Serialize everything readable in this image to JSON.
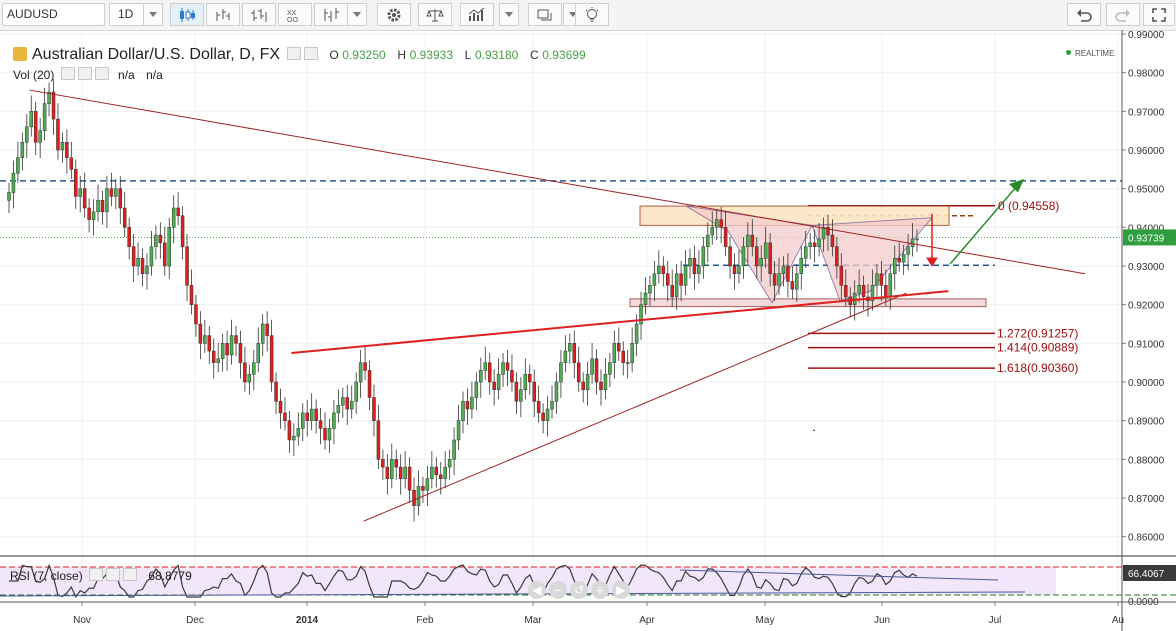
{
  "toolbar": {
    "symbol": "AUDUSD",
    "interval": "1D"
  },
  "legend": {
    "title": "Australian Dollar/U.S. Dollar, D, FX",
    "ohlc": [
      {
        "label": "O",
        "value": "0.93250"
      },
      {
        "label": "H",
        "value": "0.93933"
      },
      {
        "label": "L",
        "value": "0.93180"
      },
      {
        "label": "C",
        "value": "0.93699"
      }
    ],
    "volume_label": "Vol (20)",
    "volume_values": [
      "n/a",
      "n/a"
    ],
    "realtime": "REALTIME"
  },
  "rsi": {
    "label": "RSI (7, close)",
    "value": "68.8779",
    "axis_ticks": [
      "0.0000"
    ],
    "last_value_tag": "66.4067"
  },
  "colors": {
    "up": "#4caf50",
    "down": "#e01e1e",
    "trendline": "#a02020",
    "red_line": "#e02020",
    "resistance_dashed": "#2a5a8a",
    "fib_dashed": "#8b4513",
    "price_tag": "#2e9e3e",
    "rsi_line": "#3a3a3a",
    "rsi_fill": "#f2e6fa"
  },
  "chart_data": {
    "type": "candlestick",
    "title": "Australian Dollar/U.S. Dollar, D, FX",
    "ylim": [
      0.855,
      0.99
    ],
    "y_ticks": [
      "0.99000",
      "0.98000",
      "0.97000",
      "0.96000",
      "0.95000",
      "0.94000",
      "0.93000",
      "0.92000",
      "0.91000",
      "0.90000",
      "0.89000",
      "0.88000",
      "0.87000",
      "0.86000"
    ],
    "x_ticks": [
      "Nov",
      "Dec",
      "2014",
      "Feb",
      "Mar",
      "Apr",
      "May",
      "Jun",
      "Jul",
      "Au"
    ],
    "last_price": "0.93739",
    "fib_labels": [
      "0 (0.94558)",
      "1.272(0.91257)",
      "1.414(0.90889)",
      "1.618(0.90360)"
    ],
    "closes": [
      0.949,
      0.954,
      0.958,
      0.962,
      0.966,
      0.97,
      0.962,
      0.965,
      0.972,
      0.975,
      0.968,
      0.96,
      0.962,
      0.958,
      0.955,
      0.948,
      0.95,
      0.945,
      0.942,
      0.944,
      0.947,
      0.944,
      0.95,
      0.948,
      0.95,
      0.945,
      0.94,
      0.935,
      0.93,
      0.932,
      0.928,
      0.93,
      0.935,
      0.938,
      0.936,
      0.93,
      0.94,
      0.945,
      0.943,
      0.935,
      0.925,
      0.92,
      0.915,
      0.91,
      0.912,
      0.908,
      0.905,
      0.906,
      0.91,
      0.907,
      0.912,
      0.91,
      0.905,
      0.9,
      0.902,
      0.905,
      0.91,
      0.915,
      0.912,
      0.9,
      0.895,
      0.892,
      0.89,
      0.885,
      0.886,
      0.888,
      0.892,
      0.89,
      0.893,
      0.89,
      0.888,
      0.885,
      0.888,
      0.892,
      0.894,
      0.896,
      0.893,
      0.895,
      0.9,
      0.905,
      0.903,
      0.896,
      0.89,
      0.88,
      0.878,
      0.875,
      0.88,
      0.878,
      0.875,
      0.878,
      0.872,
      0.868,
      0.873,
      0.872,
      0.875,
      0.878,
      0.876,
      0.875,
      0.878,
      0.88,
      0.885,
      0.89,
      0.895,
      0.893,
      0.896,
      0.9,
      0.903,
      0.905,
      0.9,
      0.898,
      0.902,
      0.905,
      0.903,
      0.9,
      0.895,
      0.898,
      0.902,
      0.9,
      0.895,
      0.892,
      0.89,
      0.893,
      0.895,
      0.9,
      0.905,
      0.908,
      0.91,
      0.905,
      0.9,
      0.898,
      0.902,
      0.906,
      0.9,
      0.898,
      0.902,
      0.905,
      0.91,
      0.908,
      0.905,
      0.905,
      0.91,
      0.915,
      0.92,
      0.923,
      0.925,
      0.928,
      0.93,
      0.928,
      0.925,
      0.922,
      0.928,
      0.925,
      0.93,
      0.932,
      0.928,
      0.93,
      0.935,
      0.938,
      0.94,
      0.942,
      0.94,
      0.935,
      0.93,
      0.928,
      0.93,
      0.935,
      0.938,
      0.935,
      0.93,
      0.932,
      0.936,
      0.928,
      0.925,
      0.928,
      0.93,
      0.926,
      0.924,
      0.928,
      0.932,
      0.935,
      0.936,
      0.935,
      0.937,
      0.94,
      0.938,
      0.935,
      0.93,
      0.925,
      0.922,
      0.92,
      0.923,
      0.925,
      0.922,
      0.921,
      0.925,
      0.928,
      0.925,
      0.922,
      0.928,
      0.932,
      0.931,
      0.933,
      0.935,
      0.937,
      0.937
    ],
    "trendlines": [
      {
        "name": "upper-trendline",
        "from": [
          "2013-10-20",
          0.9755
        ],
        "to": [
          "2014-07-25",
          0.928
        ]
      },
      {
        "name": "lower-trendline",
        "from": [
          "2014-01-16",
          0.864
        ],
        "to": [
          "2014-06-08",
          0.923
        ]
      },
      {
        "name": "neckline",
        "from": [
          "2013-12-28",
          0.9075
        ],
        "to": [
          "2014-06-19",
          0.9235
        ]
      }
    ],
    "levels": [
      {
        "name": "resistance-095",
        "value": 0.952
      },
      {
        "name": "support-093",
        "value": 0.9302
      },
      {
        "name": "fib-0",
        "value": 0.94558
      },
      {
        "name": "fib-1272",
        "value": 0.91257
      },
      {
        "name": "fib-1414",
        "value": 0.90889
      },
      {
        "name": "fib-1618",
        "value": 0.9036
      }
    ],
    "zones": [
      {
        "name": "resistance-zone",
        "from": 0.9455,
        "to": 0.9405
      },
      {
        "name": "support-zone",
        "from": 0.9215,
        "to": 0.9195
      }
    ]
  }
}
